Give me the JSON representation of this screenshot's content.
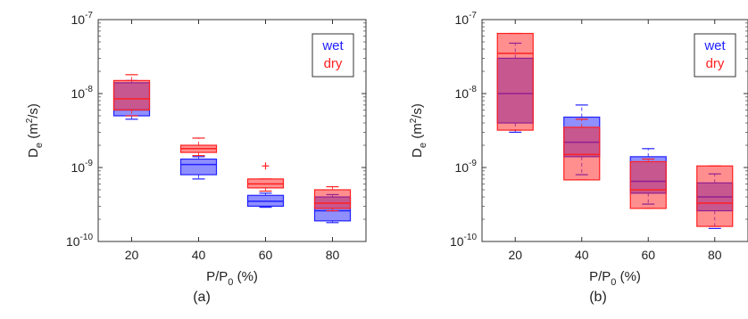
{
  "chart_data": [
    {
      "type": "box",
      "panel_label": "(a)",
      "xlabel": "P/P",
      "xlabel_sub": "0",
      "xlabel_unit": "(%)",
      "ylabel": "D",
      "ylabel_sub": "e",
      "ylabel_unit_open": "(m",
      "ylabel_unit_sup": "2",
      "ylabel_unit_close": "/s)",
      "y_scale": "log",
      "ylim": [
        1e-10,
        1e-07
      ],
      "y_ticks": [
        {
          "value": 1e-10,
          "base": "10",
          "exp": "-10"
        },
        {
          "value": 1e-09,
          "base": "10",
          "exp": "-9"
        },
        {
          "value": 1e-08,
          "base": "10",
          "exp": "-8"
        },
        {
          "value": 1e-07,
          "base": "10",
          "exp": "-7"
        }
      ],
      "categories": [
        "20",
        "40",
        "60",
        "80"
      ],
      "legend": {
        "position": "top-right"
      },
      "series": [
        {
          "name": "wet",
          "color": "#2020ff",
          "boxes": [
            {
              "q1": 5e-09,
              "median": 6e-09,
              "q3": 1.4e-08,
              "whisker_low": 4.5e-09,
              "whisker_high": 1.5e-08,
              "outliers": []
            },
            {
              "q1": 8e-10,
              "median": 1.1e-09,
              "q3": 1.3e-09,
              "whisker_low": 7e-10,
              "whisker_high": 1.4e-09,
              "outliers": []
            },
            {
              "q1": 3e-10,
              "median": 3.5e-10,
              "q3": 4.2e-10,
              "whisker_low": 2.9e-10,
              "whisker_high": 4.5e-10,
              "outliers": []
            },
            {
              "q1": 1.9e-10,
              "median": 2.6e-10,
              "q3": 4e-10,
              "whisker_low": 1.8e-10,
              "whisker_high": 4.3e-10,
              "outliers": []
            }
          ]
        },
        {
          "name": "dry",
          "color": "#ff2020",
          "boxes": [
            {
              "q1": 6e-09,
              "median": 8.5e-09,
              "q3": 1.5e-08,
              "whisker_low": 5e-09,
              "whisker_high": 1.8e-08,
              "outliers": []
            },
            {
              "q1": 1.6e-09,
              "median": 1.8e-09,
              "q3": 2e-09,
              "whisker_low": 1.45e-09,
              "whisker_high": 2.5e-09,
              "outliers": []
            },
            {
              "q1": 5.3e-10,
              "median": 6e-10,
              "q3": 7e-10,
              "whisker_low": 4.8e-10,
              "whisker_high": 7e-10,
              "outliers": [
                1.05e-09
              ]
            },
            {
              "q1": 2.8e-10,
              "median": 3.3e-10,
              "q3": 5e-10,
              "whisker_low": 2.6e-10,
              "whisker_high": 5.5e-10,
              "outliers": []
            }
          ]
        }
      ]
    },
    {
      "type": "box",
      "panel_label": "(b)",
      "xlabel": "P/P",
      "xlabel_sub": "0",
      "xlabel_unit": "(%)",
      "ylabel": "D",
      "ylabel_sub": "e",
      "ylabel_unit_open": "(m",
      "ylabel_unit_sup": "2",
      "ylabel_unit_close": "/s)",
      "y_scale": "log",
      "ylim": [
        1e-10,
        1e-07
      ],
      "y_ticks": [
        {
          "value": 1e-10,
          "base": "10",
          "exp": "-10"
        },
        {
          "value": 1e-09,
          "base": "10",
          "exp": "-9"
        },
        {
          "value": 1e-08,
          "base": "10",
          "exp": "-8"
        },
        {
          "value": 1e-07,
          "base": "10",
          "exp": "-7"
        }
      ],
      "categories": [
        "20",
        "40",
        "60",
        "80"
      ],
      "legend": {
        "position": "top-right"
      },
      "series": [
        {
          "name": "wet",
          "color": "#2020ff",
          "boxes": [
            {
              "q1": 4e-09,
              "median": 1e-08,
              "q3": 3e-08,
              "whisker_low": 3e-09,
              "whisker_high": 4.8e-08,
              "outliers": []
            },
            {
              "q1": 1.4e-09,
              "median": 2.2e-09,
              "q3": 4.8e-09,
              "whisker_low": 8e-10,
              "whisker_high": 7e-09,
              "outliers": []
            },
            {
              "q1": 4.5e-10,
              "median": 6.5e-10,
              "q3": 1.4e-09,
              "whisker_low": 3.2e-10,
              "whisker_high": 1.8e-09,
              "outliers": []
            },
            {
              "q1": 2.6e-10,
              "median": 4e-10,
              "q3": 6.2e-10,
              "whisker_low": 1.5e-10,
              "whisker_high": 8.2e-10,
              "outliers": []
            }
          ]
        },
        {
          "name": "dry",
          "color": "#ff2020",
          "boxes": [
            {
              "q1": 3.2e-09,
              "median": 3.5e-08,
              "q3": 6.5e-08,
              "whisker_low": 3.2e-09,
              "whisker_high": 6.5e-08,
              "outliers": []
            },
            {
              "q1": 6.8e-10,
              "median": 1.5e-09,
              "q3": 3.5e-09,
              "whisker_low": 6.8e-10,
              "whisker_high": 4.5e-09,
              "outliers": []
            },
            {
              "q1": 2.8e-10,
              "median": 5e-10,
              "q3": 1.2e-09,
              "whisker_low": 2.8e-10,
              "whisker_high": 1.3e-09,
              "outliers": []
            },
            {
              "q1": 1.6e-10,
              "median": 3.3e-10,
              "q3": 1.05e-09,
              "whisker_low": 1.6e-10,
              "whisker_high": 1.05e-09,
              "outliers": []
            }
          ]
        }
      ]
    }
  ]
}
